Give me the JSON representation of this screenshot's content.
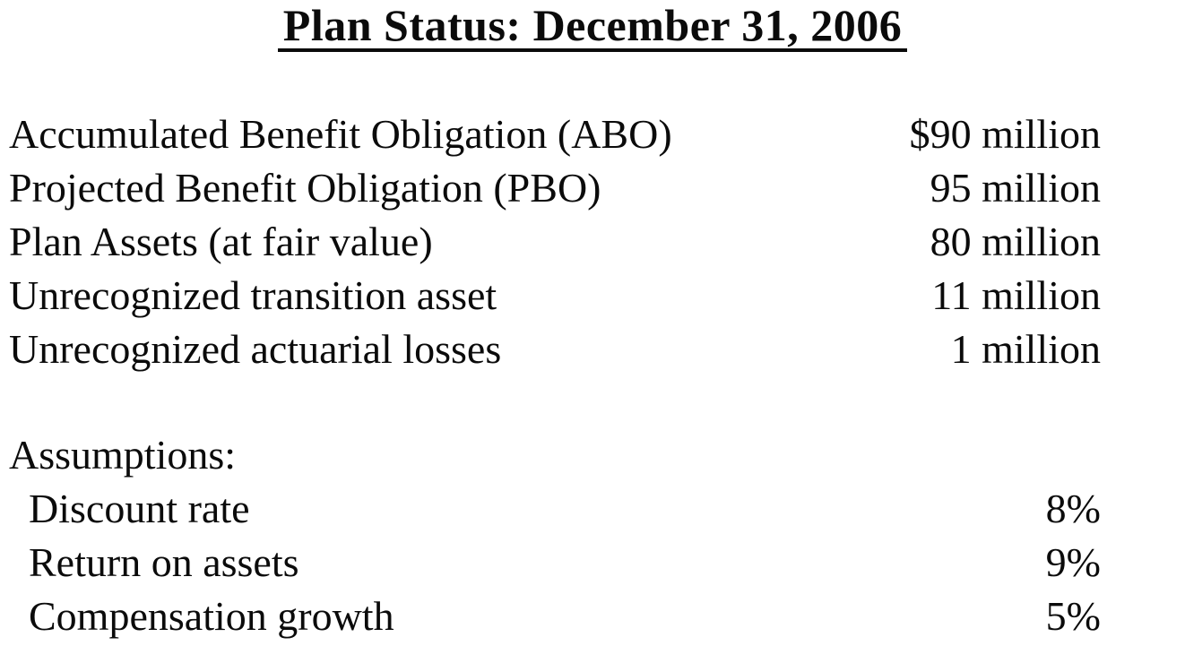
{
  "title": "Plan Status: December 31, 2006",
  "plan_items": [
    {
      "label": "Accumulated Benefit Obligation (ABO)",
      "value": "$90 million"
    },
    {
      "label": "Projected Benefit Obligation (PBO)",
      "value": "95 million"
    },
    {
      "label": "Plan Assets (at fair value)",
      "value": "80 million"
    },
    {
      "label": "Unrecognized transition asset",
      "value": "11 million"
    },
    {
      "label": "Unrecognized actuarial losses",
      "value": "1 million"
    }
  ],
  "assumptions": {
    "heading": "Assumptions:",
    "items": [
      {
        "label": "Discount rate",
        "value": "8%"
      },
      {
        "label": "Return on assets",
        "value": "9%"
      },
      {
        "label": "Compensation growth",
        "value": "5%"
      }
    ]
  },
  "colors": {
    "text": "#0b0b0b",
    "background": "#ffffff"
  }
}
